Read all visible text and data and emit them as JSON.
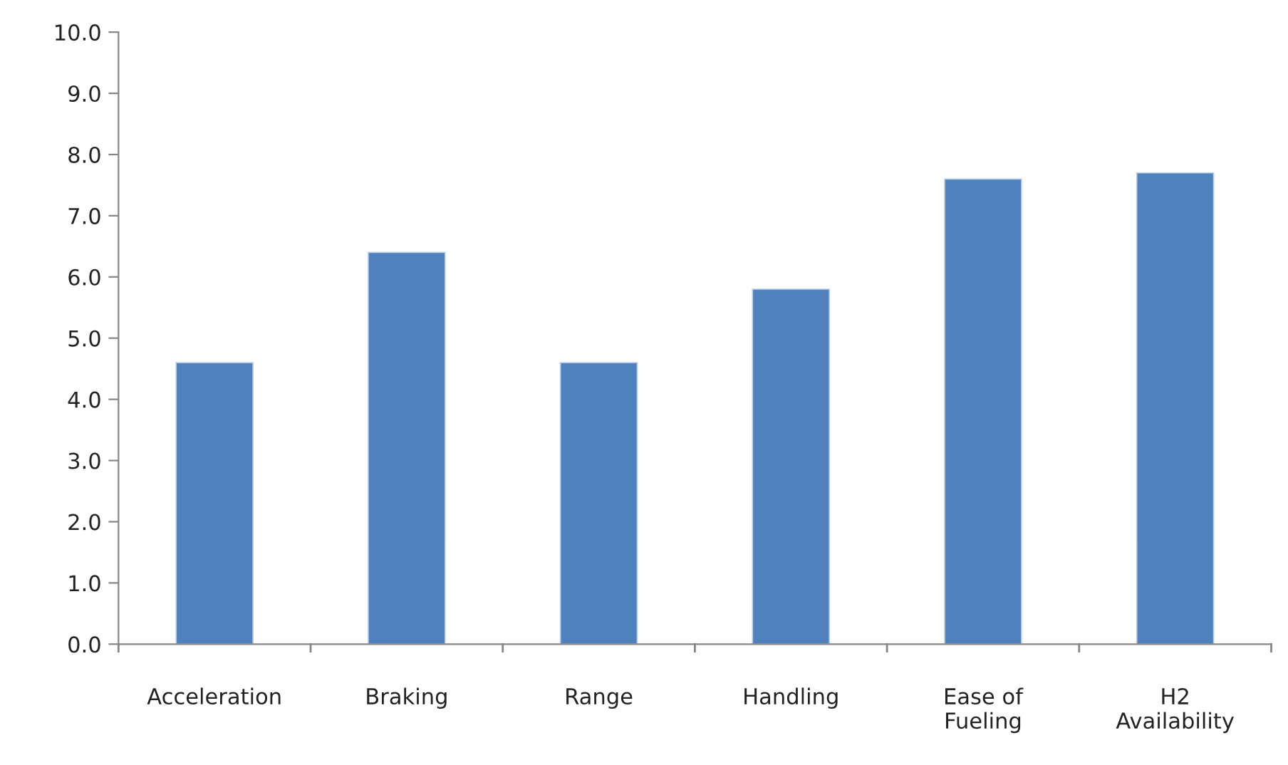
{
  "chart_data": {
    "type": "bar",
    "categories": [
      "Acceleration",
      "Braking",
      "Range",
      "Handling",
      "Ease of\nFueling",
      "H2\nAvailability"
    ],
    "series": [
      {
        "color": "#4f81bd",
        "values": [
          4.6,
          6.4,
          4.6,
          5.8,
          7.6,
          7.7
        ]
      }
    ],
    "ylim": [
      0,
      10
    ],
    "yticks": [
      {
        "value": 0,
        "label": "0.0"
      },
      {
        "value": 1,
        "label": "1.0"
      },
      {
        "value": 2,
        "label": "2.0"
      },
      {
        "value": 3,
        "label": "3.0"
      },
      {
        "value": 4,
        "label": "4.0"
      },
      {
        "value": 5,
        "label": "5.0"
      },
      {
        "value": 6,
        "label": "6.0"
      },
      {
        "value": 7,
        "label": "7.0"
      },
      {
        "value": 8,
        "label": "8.0"
      },
      {
        "value": 9,
        "label": "9.0"
      },
      {
        "value": 10,
        "label": "10.0"
      }
    ],
    "grid": false
  }
}
